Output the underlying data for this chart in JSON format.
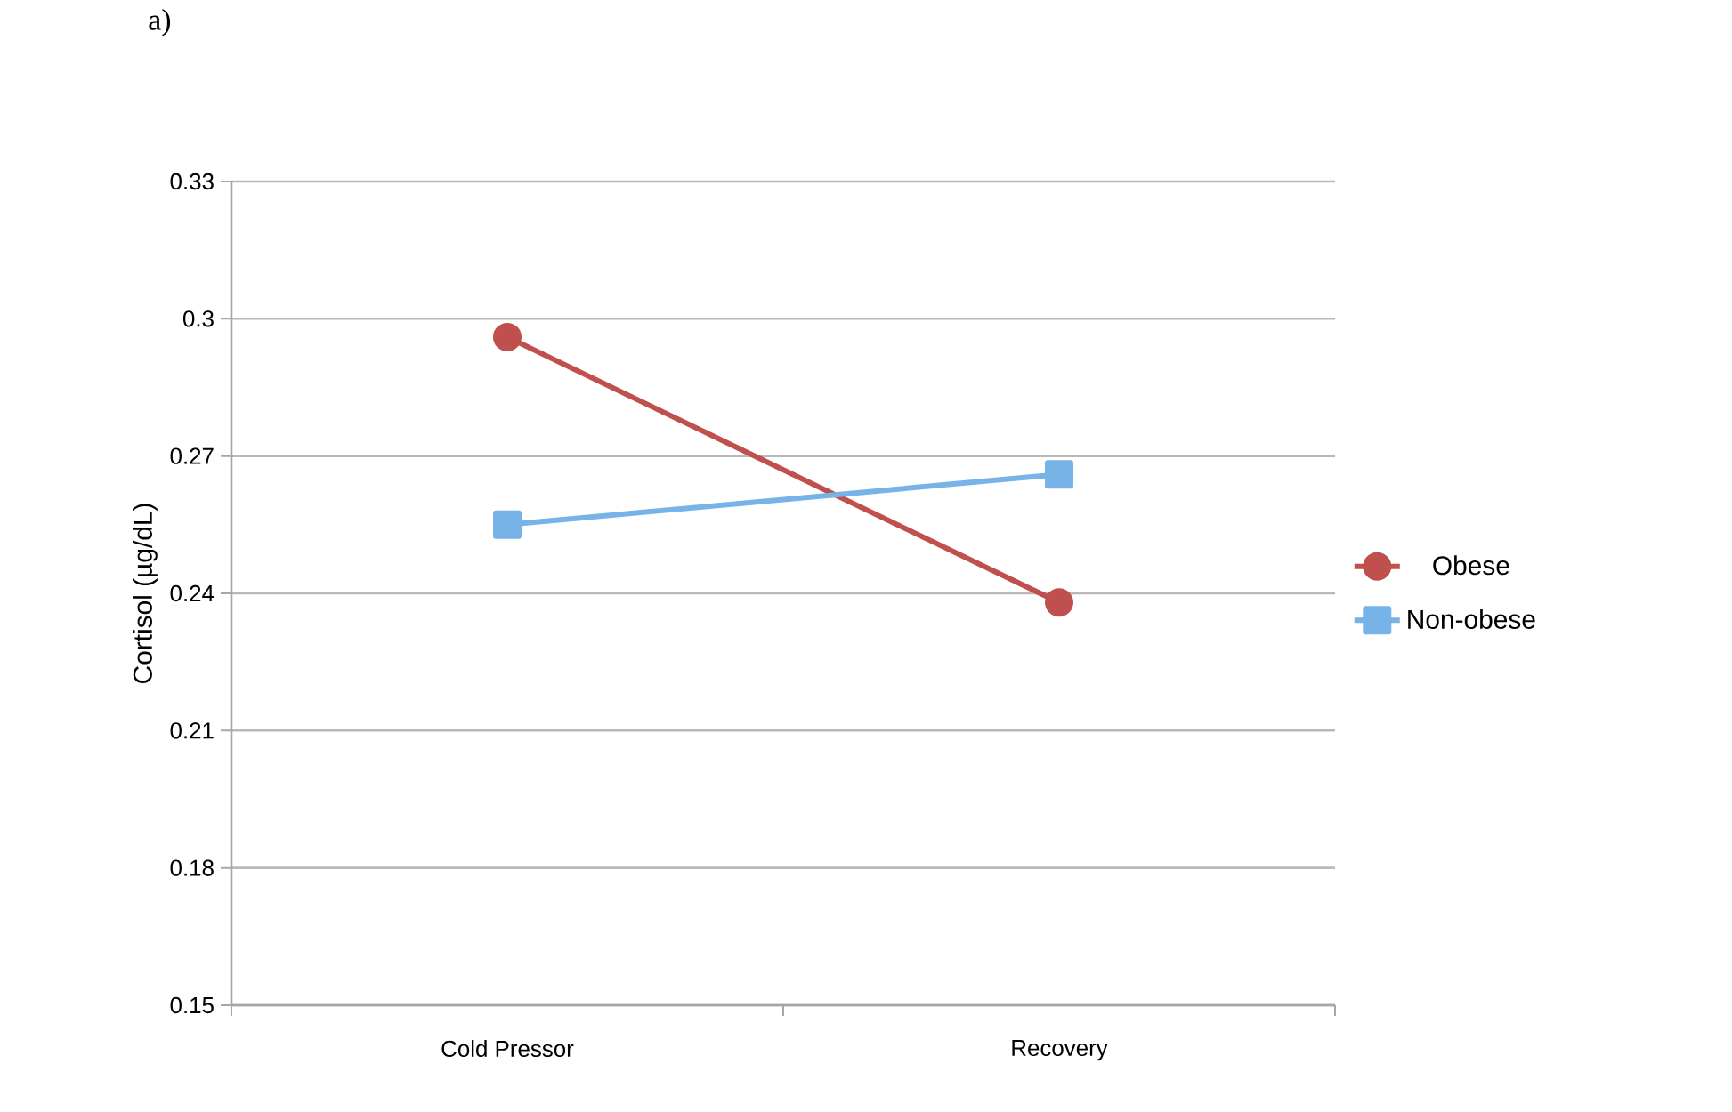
{
  "chart_data": {
    "type": "line",
    "title": "a)",
    "ylabel": "Cortisol (µg/dL)",
    "categories": [
      "Cold Pressor",
      "Recovery"
    ],
    "series": [
      {
        "name": "Obese",
        "color": "#c0504d",
        "marker": "circle",
        "values": [
          0.296,
          0.238
        ]
      },
      {
        "name": "Non-obese",
        "color": "#77b3e6",
        "marker": "square",
        "values": [
          0.255,
          0.266
        ]
      }
    ],
    "ylim": [
      0.15,
      0.33
    ],
    "yticks": [
      0.15,
      0.18,
      0.21,
      0.24,
      0.27,
      0.3,
      0.33
    ],
    "grid": "y",
    "legend": "right"
  }
}
